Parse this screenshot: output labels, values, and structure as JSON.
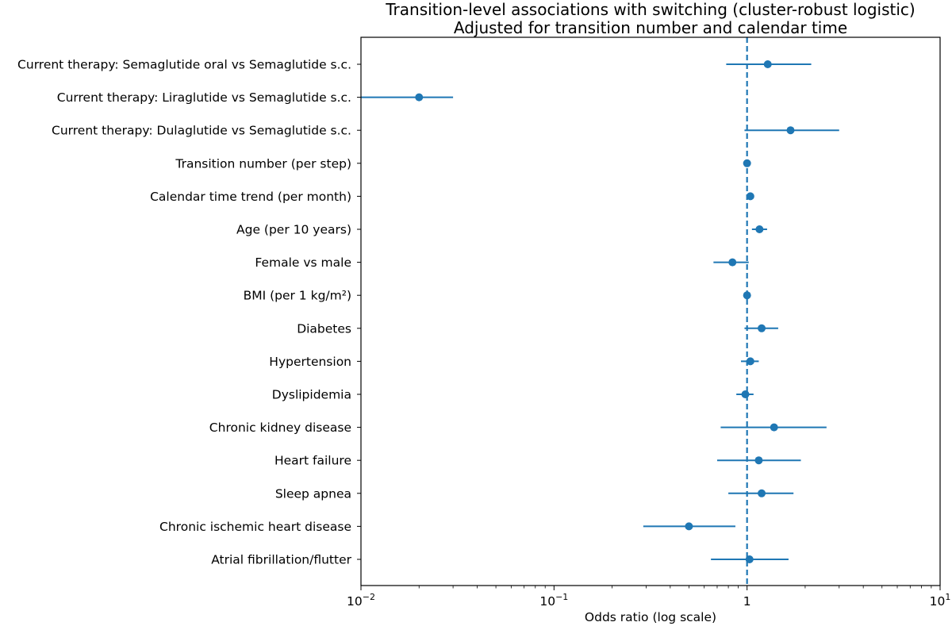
{
  "chart_data": {
    "type": "scatter",
    "subtype": "forest-plot",
    "title": "Transition-level associations with switching (cluster-robust logistic)",
    "subtitle": "Adjusted for transition number and calendar time",
    "xlabel": "Odds ratio (log scale)",
    "xscale": "log",
    "xlim": [
      0.01,
      10
    ],
    "xticks": [
      {
        "value": 0.01,
        "base": "10",
        "exp": "−2"
      },
      {
        "value": 0.1,
        "base": "10",
        "exp": "−1"
      },
      {
        "value": 1,
        "base": "1",
        "exp": ""
      },
      {
        "value": 10,
        "base": "10",
        "exp": "1"
      }
    ],
    "reference_line": 1,
    "grid": false,
    "color": "#1f77b4",
    "rows": [
      {
        "label": "Current therapy: Semaglutide oral vs Semaglutide s.c.",
        "or": 1.28,
        "lo": 0.78,
        "hi": 2.15
      },
      {
        "label": "Current therapy: Liraglutide vs Semaglutide s.c.",
        "or": 0.02,
        "lo": 0.01,
        "hi": 0.03
      },
      {
        "label": "Current therapy: Dulaglutide vs Semaglutide s.c.",
        "or": 1.68,
        "lo": 0.97,
        "hi": 3.0
      },
      {
        "label": "Transition number (per step)",
        "or": 1.0,
        "lo": 0.98,
        "hi": 1.02
      },
      {
        "label": "Calendar time trend (per month)",
        "or": 1.04,
        "lo": 1.02,
        "hi": 1.06
      },
      {
        "label": "Age (per 10 years)",
        "or": 1.16,
        "lo": 1.06,
        "hi": 1.27
      },
      {
        "label": "Female vs male",
        "or": 0.84,
        "lo": 0.67,
        "hi": 1.02
      },
      {
        "label": "BMI (per 1 kg/m²)",
        "or": 1.0,
        "lo": 0.98,
        "hi": 1.02
      },
      {
        "label": "Diabetes",
        "or": 1.19,
        "lo": 0.97,
        "hi": 1.45
      },
      {
        "label": "Hypertension",
        "or": 1.04,
        "lo": 0.93,
        "hi": 1.15
      },
      {
        "label": "Dyslipidemia",
        "or": 0.98,
        "lo": 0.88,
        "hi": 1.08
      },
      {
        "label": "Chronic kidney disease",
        "or": 1.38,
        "lo": 0.73,
        "hi": 2.58
      },
      {
        "label": "Heart failure",
        "or": 1.15,
        "lo": 0.7,
        "hi": 1.9
      },
      {
        "label": "Sleep apnea",
        "or": 1.19,
        "lo": 0.8,
        "hi": 1.74
      },
      {
        "label": "Chronic ischemic heart disease",
        "or": 0.5,
        "lo": 0.29,
        "hi": 0.87
      },
      {
        "label": "Atrial fibrillation/flutter",
        "or": 1.03,
        "lo": 0.65,
        "hi": 1.64
      }
    ]
  }
}
